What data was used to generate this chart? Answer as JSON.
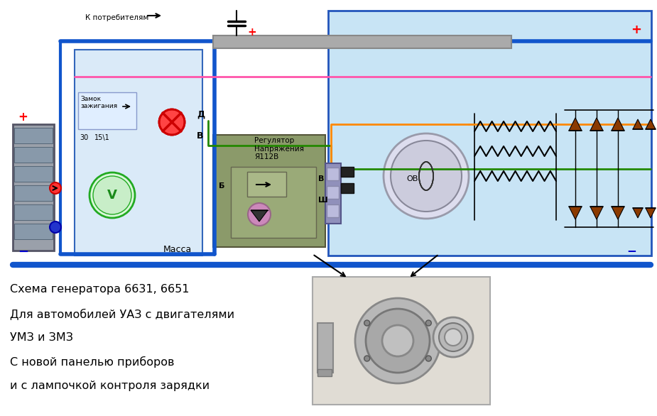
{
  "bg_color": "#ffffff",
  "title_lines": [
    "Схема генератора 6631, 6651",
    "Для автомобилей УАЗ с двигателями",
    "УМЗ и ЗМЗ",
    "С новой панелью приборов",
    "и с лампочкой контроля зарядки"
  ],
  "label_k_potrebitelyam": "К потребителям",
  "label_zamok": "Замок\nзажигания",
  "label_massa": "Масса",
  "label_regulator": "Регулятор\nНапряжения\nЯ112В",
  "label_d": "Д",
  "label_v": "В",
  "label_b": "Б",
  "label_v2": "В",
  "label_sh": "Ш",
  "label_ov": "ОВ",
  "label_30": "30",
  "label_151": "15\\1",
  "plus_color": "#ff0000",
  "minus_color": "#0000cc",
  "wire_blue": "#1155cc",
  "wire_green": "#228800",
  "wire_pink": "#ff55aa",
  "wire_orange": "#ff8800",
  "wire_black": "#000000",
  "diode_color": "#8b3a00"
}
